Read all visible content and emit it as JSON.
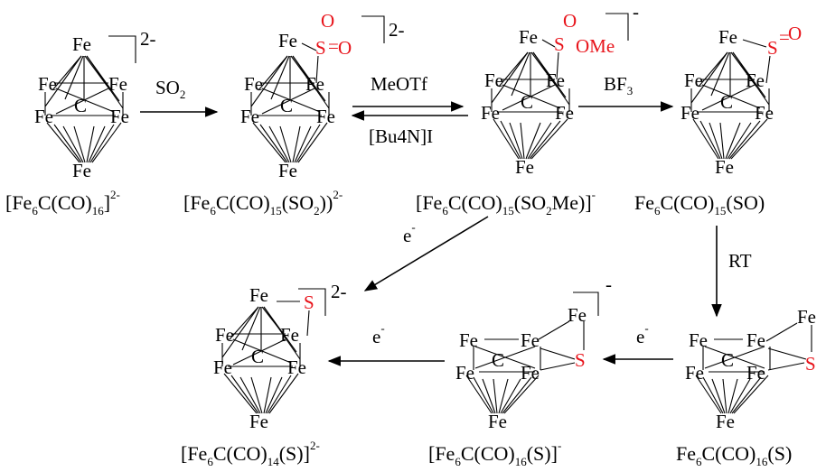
{
  "atoms": {
    "iron": "Fe",
    "carbon": "C",
    "sulfur": "S",
    "oxygen": "O",
    "methoxy": "OMe",
    "bond_sym": "="
  },
  "colors": {
    "accent": "#e8141b",
    "ink": "#000000"
  },
  "charges": {
    "dianion": "2-",
    "anion": "-",
    "electron": "e",
    "electron_sup": "-"
  },
  "reagents": {
    "so2": "SO",
    "so2_sub": "2",
    "meotf": "MeOTf",
    "bu4ni": "[Bu4N]I",
    "bf3": "BF",
    "bf3_sub": "3",
    "rt": "RT"
  },
  "compounds": {
    "c1": {
      "a": "[Fe",
      "b": "6",
      "c": "C(CO)",
      "d": "16",
      "e": "]",
      "sup": "2-"
    },
    "c2": {
      "a": "[Fe",
      "b": "6",
      "c": "C(CO)",
      "d": "15",
      "e": "(SO",
      "f": "2",
      "g": "))",
      "sup": "2-"
    },
    "c3": {
      "a": "[Fe",
      "b": "6",
      "c": "C(CO)",
      "d": "15",
      "e": "(SO",
      "f": "2",
      "g": "Me)]",
      "sup": "-"
    },
    "c4": {
      "a": "Fe",
      "b": "6",
      "c": "C(CO)",
      "d": "15",
      "e": "(SO)"
    },
    "c5": {
      "a": "Fe",
      "b": "6",
      "c": "C(CO)",
      "d": "16",
      "e": "(S)"
    },
    "c6": {
      "a": "[Fe",
      "b": "6",
      "c": "C(CO)",
      "d": "16",
      "e": "(S)]",
      "sup": "-"
    },
    "c7": {
      "a": "[Fe",
      "b": "6",
      "c": "C(CO)",
      "d": "14",
      "e": "(S)]",
      "sup": "2-"
    }
  }
}
